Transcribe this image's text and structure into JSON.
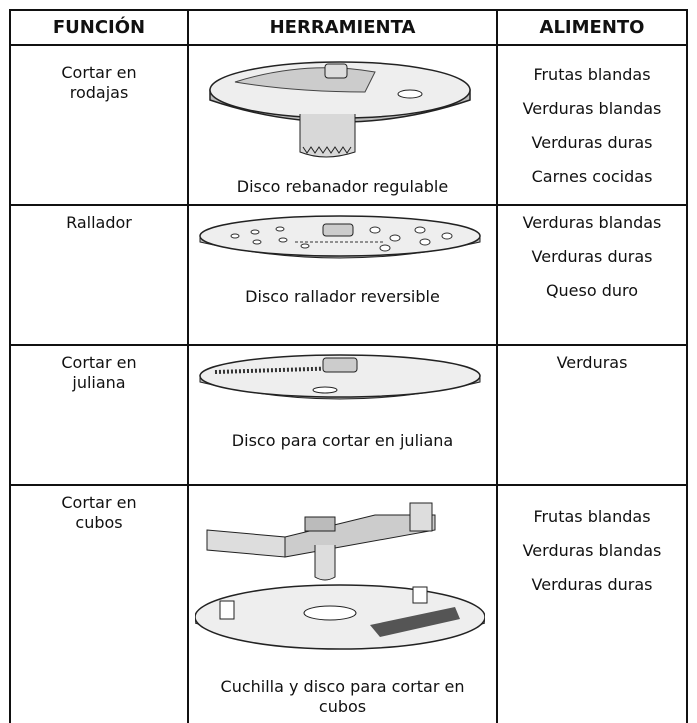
{
  "table": {
    "headers": [
      "FUNCIÓN",
      "HERRAMIENTA",
      "ALIMENTO"
    ],
    "rows": [
      {
        "function": "Cortar en rodajas",
        "tool": "Disco rebanador regulable",
        "foods": [
          "Frutas blandas",
          "Verduras blandas",
          "Verduras duras",
          "Carnes cocidas"
        ]
      },
      {
        "function": "Rallador",
        "tool": "Disco rallador reversible",
        "foods": [
          "Verduras blandas",
          "Verduras duras",
          "Queso duro"
        ]
      },
      {
        "function": "Cortar en juliana",
        "tool": "Disco para cortar en juliana",
        "foods": [
          "Verduras"
        ]
      },
      {
        "function": "Cortar en cubos",
        "tool": "Cuchilla y disco para cortar en cubos",
        "foods": [
          "Frutas blandas",
          "Verduras blandas",
          "Verduras duras"
        ]
      }
    ]
  }
}
